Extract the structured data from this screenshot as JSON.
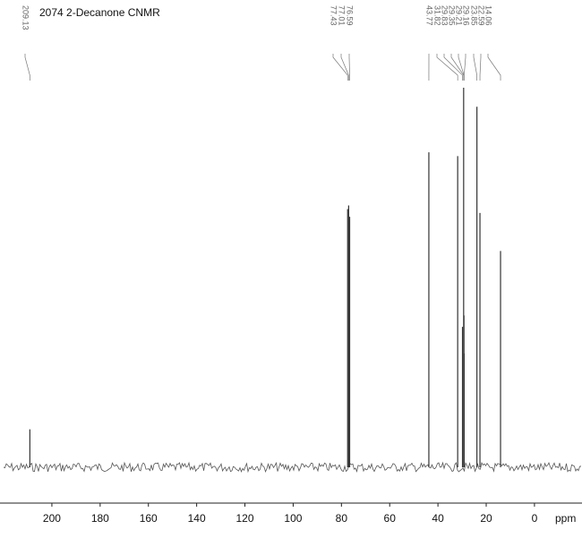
{
  "chart_data": {
    "type": "spectrum",
    "title": "2074   2-Decanone CNMR",
    "x_label": "ppm",
    "xlim": [
      221.5,
      -19.7
    ],
    "xticks": [
      200,
      180,
      160,
      140,
      120,
      100,
      80,
      60,
      40,
      20,
      0
    ],
    "color": "#333333",
    "peaks": {
      "x": [
        209.13,
        77.43,
        77.01,
        76.59,
        43.77,
        31.82,
        29.83,
        29.35,
        29.21,
        29.16,
        23.85,
        22.59,
        14.06
      ],
      "values": [
        10,
        68,
        69,
        66,
        83,
        82,
        37,
        100,
        40,
        30,
        95,
        67,
        57
      ]
    }
  }
}
